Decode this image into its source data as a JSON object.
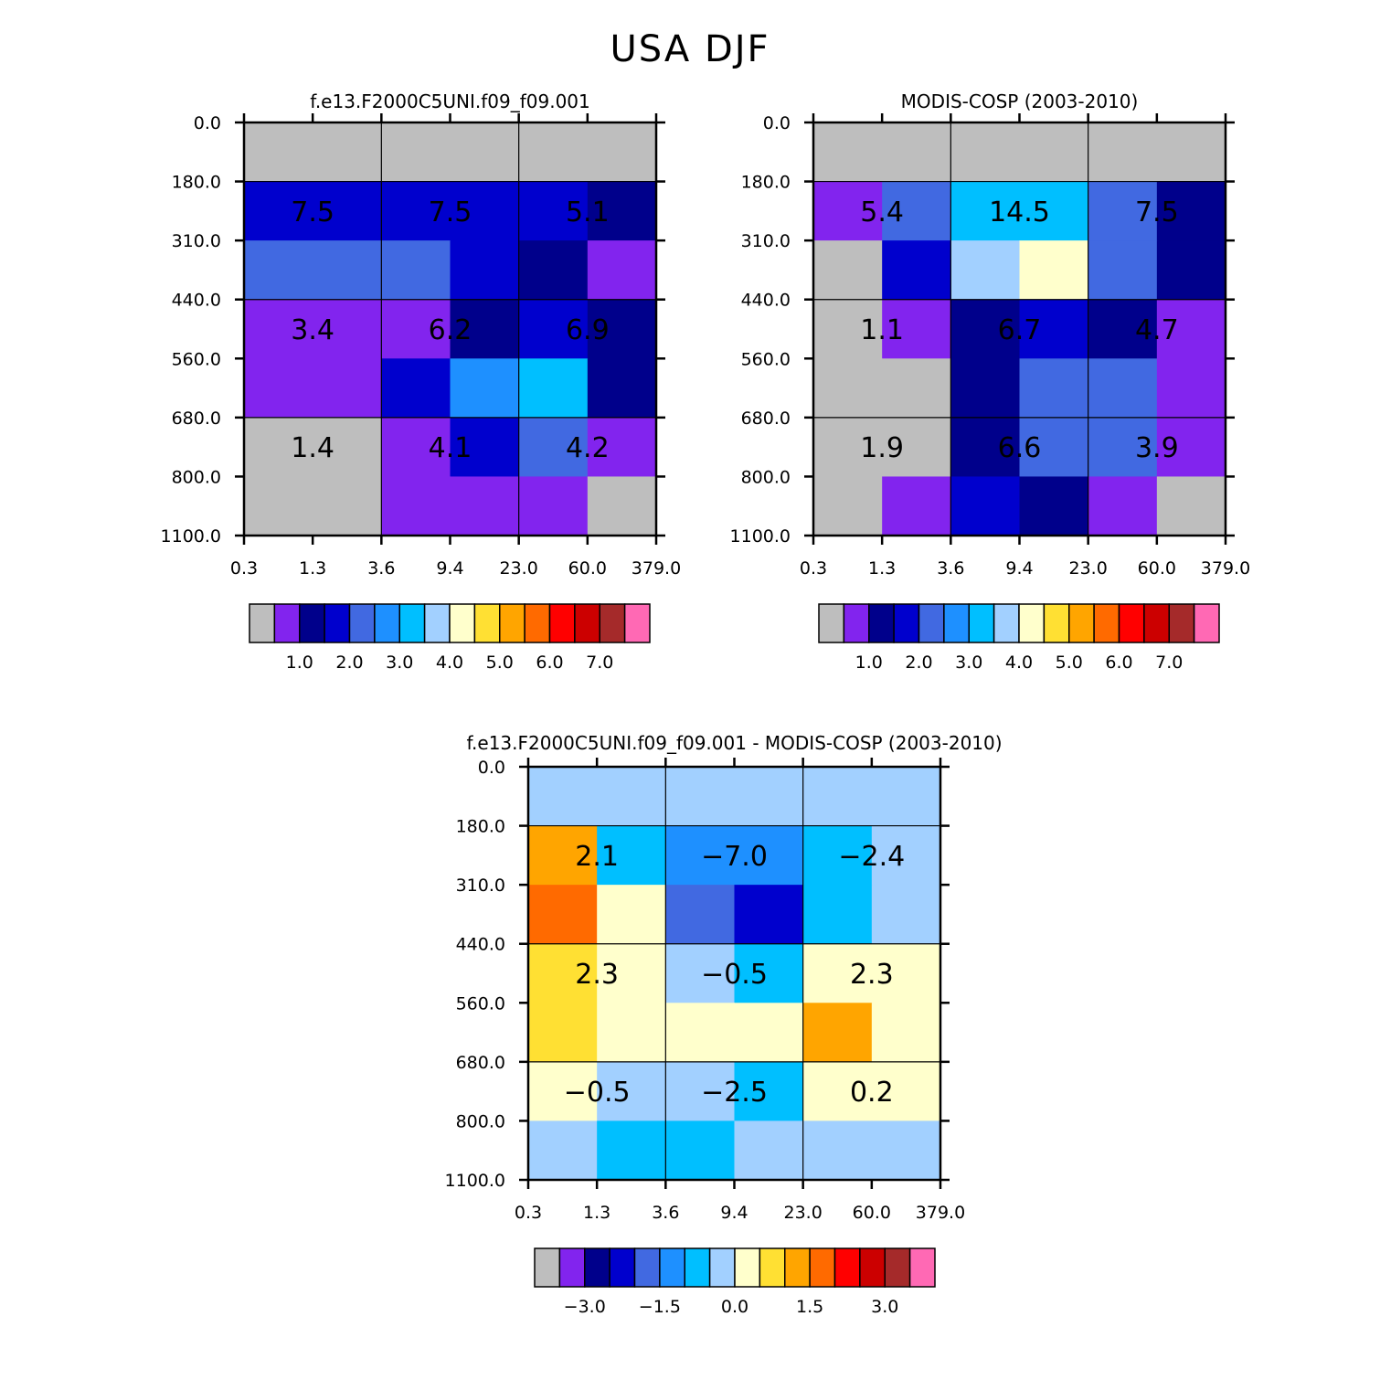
{
  "chart_data": {
    "type": "heatmap",
    "title": "USA DJF",
    "palette": {
      "gray": "#bebebe",
      "violet": "#8224ee",
      "navy": "#00008b",
      "blue": "#0000cd",
      "royal": "#4169e1",
      "dodger": "#1e90ff",
      "sky": "#00bfff",
      "pale_blue": "#a2d0ff",
      "pale_yellow": "#ffffcc",
      "yellow": "#ffe033",
      "orange": "#ffa500",
      "dark_orange": "#ff6a00",
      "red": "#ff0000",
      "crimson": "#cc0000",
      "brown": "#a52a2a",
      "pink": "#ff69b4"
    },
    "colorbar_sequence": [
      "gray",
      "violet",
      "navy",
      "blue",
      "royal",
      "dodger",
      "sky",
      "pale_blue",
      "pale_yellow",
      "yellow",
      "orange",
      "dark_orange",
      "red",
      "crimson",
      "brown",
      "pink"
    ],
    "panels": [
      {
        "title": "f.e13.F2000C5UNI.f09_f09.001",
        "x_ticks": [
          "0.3",
          "1.3",
          "3.6",
          "9.4",
          "23.0",
          "60.0",
          "379.0"
        ],
        "y_ticks": [
          "0.0",
          "180.0",
          "310.0",
          "440.0",
          "560.0",
          "680.0",
          "800.0",
          "1100.0"
        ],
        "cells": [
          [
            "gray",
            "gray",
            "gray",
            "gray",
            "gray",
            "gray"
          ],
          [
            "blue",
            "blue",
            "blue",
            "blue",
            "blue",
            "navy"
          ],
          [
            "royal",
            "royal",
            "royal",
            "blue",
            "navy",
            "violet"
          ],
          [
            "violet",
            "violet",
            "violet",
            "navy",
            "blue",
            "navy"
          ],
          [
            "violet",
            "violet",
            "blue",
            "dodger",
            "sky",
            "navy"
          ],
          [
            "gray",
            "gray",
            "violet",
            "blue",
            "royal",
            "violet"
          ],
          [
            "gray",
            "gray",
            "violet",
            "violet",
            "violet",
            "gray"
          ]
        ],
        "box_values": [
          [
            "7.5",
            "7.5",
            "5.1"
          ],
          [
            "3.4",
            "6.2",
            "6.9"
          ],
          [
            "1.4",
            "4.1",
            "4.2"
          ]
        ],
        "colorbar_labels": [
          "1.0",
          "2.0",
          "3.0",
          "4.0",
          "5.0",
          "6.0",
          "7.0"
        ]
      },
      {
        "title": "MODIS-COSP (2003-2010)",
        "x_ticks": [
          "0.3",
          "1.3",
          "3.6",
          "9.4",
          "23.0",
          "60.0",
          "379.0"
        ],
        "y_ticks": [
          "0.0",
          "180.0",
          "310.0",
          "440.0",
          "560.0",
          "680.0",
          "800.0",
          "1100.0"
        ],
        "cells": [
          [
            "gray",
            "gray",
            "gray",
            "gray",
            "gray",
            "gray"
          ],
          [
            "violet",
            "royal",
            "sky",
            "sky",
            "royal",
            "navy"
          ],
          [
            "gray",
            "blue",
            "pale_blue",
            "pale_yellow",
            "royal",
            "navy"
          ],
          [
            "gray",
            "violet",
            "navy",
            "blue",
            "navy",
            "violet"
          ],
          [
            "gray",
            "gray",
            "navy",
            "royal",
            "royal",
            "violet"
          ],
          [
            "gray",
            "gray",
            "navy",
            "royal",
            "royal",
            "violet"
          ],
          [
            "gray",
            "violet",
            "blue",
            "navy",
            "violet",
            "gray"
          ]
        ],
        "box_values": [
          [
            "5.4",
            "14.5",
            "7.5"
          ],
          [
            "1.1",
            "6.7",
            "4.7"
          ],
          [
            "1.9",
            "6.6",
            "3.9"
          ]
        ],
        "colorbar_labels": [
          "1.0",
          "2.0",
          "3.0",
          "4.0",
          "5.0",
          "6.0",
          "7.0"
        ]
      },
      {
        "title": "f.e13.F2000C5UNI.f09_f09.001 - MODIS-COSP (2003-2010)",
        "x_ticks": [
          "0.3",
          "1.3",
          "3.6",
          "9.4",
          "23.0",
          "60.0",
          "379.0"
        ],
        "y_ticks": [
          "0.0",
          "180.0",
          "310.0",
          "440.0",
          "560.0",
          "680.0",
          "800.0",
          "1100.0"
        ],
        "cells": [
          [
            "pale_blue",
            "pale_blue",
            "pale_blue",
            "pale_blue",
            "pale_blue",
            "pale_blue"
          ],
          [
            "orange",
            "sky",
            "dodger",
            "dodger",
            "sky",
            "pale_blue"
          ],
          [
            "dark_orange",
            "pale_yellow",
            "royal",
            "blue",
            "sky",
            "pale_blue"
          ],
          [
            "yellow",
            "pale_yellow",
            "pale_blue",
            "sky",
            "pale_yellow",
            "pale_yellow"
          ],
          [
            "yellow",
            "pale_yellow",
            "pale_yellow",
            "pale_yellow",
            "orange",
            "pale_yellow"
          ],
          [
            "pale_yellow",
            "pale_blue",
            "pale_blue",
            "sky",
            "pale_yellow",
            "pale_yellow"
          ],
          [
            "pale_blue",
            "sky",
            "sky",
            "pale_blue",
            "pale_blue",
            "pale_blue"
          ]
        ],
        "box_values": [
          [
            "2.1",
            "−7.0",
            "−2.4"
          ],
          [
            "2.3",
            "−0.5",
            "2.3"
          ],
          [
            "−0.5",
            "−2.5",
            "0.2"
          ]
        ],
        "colorbar_labels": [
          "−3.0",
          "−1.5",
          "0.0",
          "1.5",
          "3.0"
        ]
      }
    ]
  }
}
